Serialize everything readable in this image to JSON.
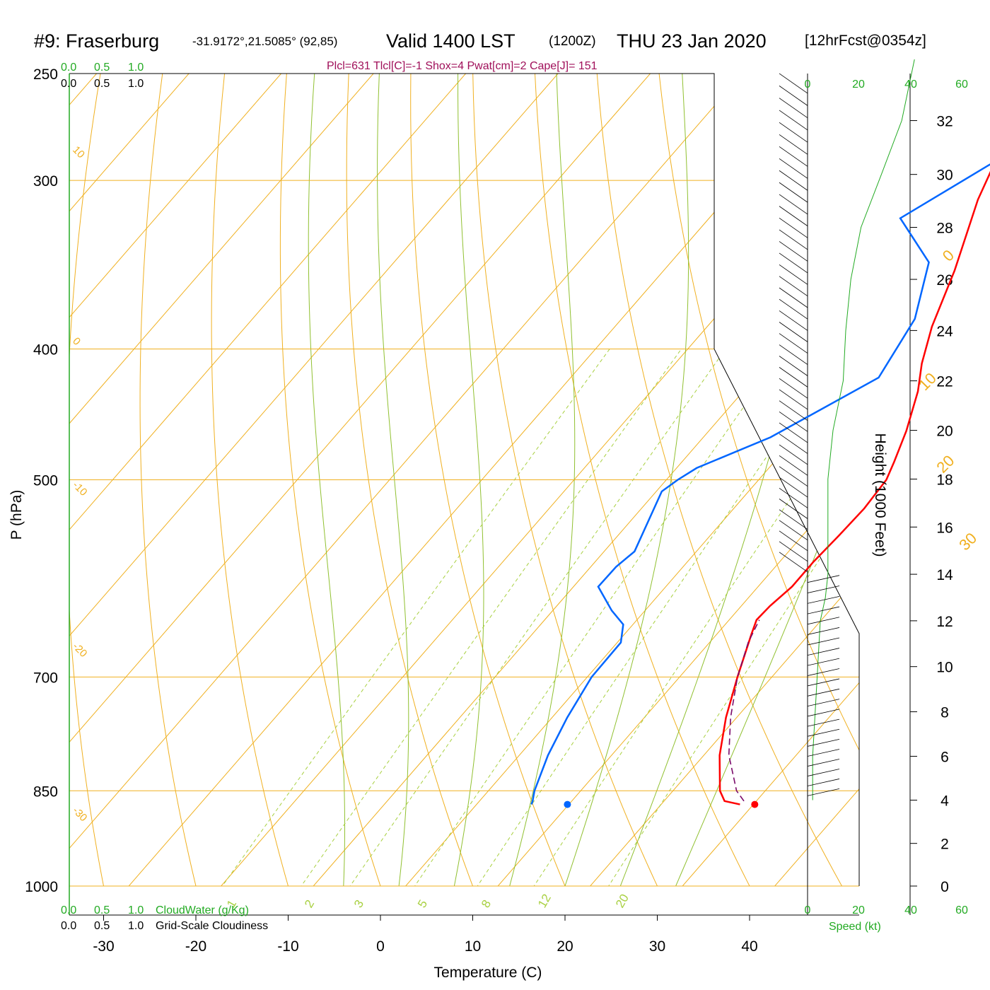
{
  "header": {
    "station": "#9: Fraserburg",
    "coords": "-31.9172°,21.5085° (92,85)",
    "valid": "Valid 1400 LST",
    "zulu": "(1200Z)",
    "date": "THU 23 Jan 2020",
    "forecast": "[12hrFcst@0354z]",
    "indices": "Plcl=631 Tlcl[C]=-1 Shox=4 Pwat[cm]=2 Cape[J]= 151"
  },
  "scales": {
    "cloudwater_ticks": [
      "0.0",
      "0.5",
      "1.0"
    ],
    "cloudwater_label": "CloudWater (g/Kg)",
    "cloudiness_ticks": [
      "0.0",
      "0.5",
      "1.0"
    ],
    "cloudiness_label": "Grid-Scale Cloudiness",
    "speed_ticks": [
      "0",
      "20",
      "40",
      "60"
    ],
    "speed_label": "Speed (kt)"
  },
  "colors": {
    "temperature": "#ff0000",
    "dewpoint": "#0066ff",
    "parcel": "#7a0a6a",
    "isotherm": "#f0b020",
    "dry_adiabat": "#f0b020",
    "moist_adiabat": "#90c030",
    "mixing_ratio": "#a8d040",
    "speed_profile": "#22aa22"
  },
  "chart_data": {
    "type": "line",
    "subtype": "skew-T log-P sounding",
    "xlabel": "Temperature (C)",
    "ylabel": "P (hPa)",
    "y2label": "Height (1000 Feet)",
    "x_ticks": [
      -30,
      -20,
      -10,
      0,
      10,
      20,
      30,
      40
    ],
    "p_ticks": [
      250,
      300,
      400,
      500,
      700,
      850,
      1000
    ],
    "height_ticks": [
      0,
      2,
      4,
      6,
      8,
      10,
      12,
      14,
      16,
      18,
      20,
      22,
      24,
      26,
      28,
      30,
      32
    ],
    "skewed_isotherms": [
      0,
      10,
      20,
      30
    ],
    "left_isotherms": [
      10,
      0,
      -10,
      -20,
      -30
    ],
    "mixing_ratio_labels": [
      "1",
      "2",
      "3",
      "5",
      "8",
      "12",
      "20"
    ],
    "series": [
      {
        "name": "Temperature",
        "points": [
          [
            870,
            31.0
          ],
          [
            865,
            29.0
          ],
          [
            850,
            27.5
          ],
          [
            800,
            24.0
          ],
          [
            750,
            21.0
          ],
          [
            700,
            18.3
          ],
          [
            650,
            15.6
          ],
          [
            635,
            14.8
          ],
          [
            620,
            14.9
          ],
          [
            600,
            15.4
          ],
          [
            575,
            15.3
          ],
          [
            550,
            15.5
          ],
          [
            525,
            15.6
          ],
          [
            500,
            15.2
          ],
          [
            485,
            14.3
          ],
          [
            460,
            12.6
          ],
          [
            430,
            10.0
          ],
          [
            410,
            7.7
          ],
          [
            385,
            5.2
          ],
          [
            350,
            2.2
          ],
          [
            310,
            -2.2
          ],
          [
            270,
            -6.1
          ],
          [
            250,
            -7.4
          ]
        ]
      },
      {
        "name": "Dewpoint",
        "points": [
          [
            870,
            8.4
          ],
          [
            865,
            8.2
          ],
          [
            850,
            7.4
          ],
          [
            800,
            5.4
          ],
          [
            750,
            3.8
          ],
          [
            700,
            2.5
          ],
          [
            660,
            2.3
          ],
          [
            640,
            0.8
          ],
          [
            625,
            -1.8
          ],
          [
            600,
            -5.6
          ],
          [
            580,
            -5.6
          ],
          [
            565,
            -5.1
          ],
          [
            510,
            -8.0
          ],
          [
            500,
            -7.4
          ],
          [
            490,
            -6.5
          ],
          [
            465,
            -1.5
          ],
          [
            420,
            4.4
          ],
          [
            380,
            2.6
          ],
          [
            345,
            -1.4
          ],
          [
            320,
            -8.8
          ],
          [
            290,
            -4.0
          ],
          [
            265,
            -4.0
          ],
          [
            250,
            -4.9
          ]
        ]
      },
      {
        "name": "Parcel",
        "points": [
          [
            865,
            31.1
          ],
          [
            850,
            29.3
          ],
          [
            800,
            25.0
          ],
          [
            750,
            21.5
          ],
          [
            700,
            18.3
          ],
          [
            660,
            16.1
          ],
          [
            635,
            15.1
          ]
        ]
      }
    ],
    "surface_points": {
      "temperature": 32.6,
      "dewpoint": 12.3,
      "pressure": 870
    },
    "wind_speed_profile_kt": [
      [
        4,
        2
      ],
      [
        6,
        2
      ],
      [
        8,
        3
      ],
      [
        10,
        4
      ],
      [
        12,
        5
      ],
      [
        13,
        7
      ],
      [
        14,
        8
      ],
      [
        16,
        8
      ],
      [
        18,
        8
      ],
      [
        20,
        10
      ],
      [
        22,
        14
      ],
      [
        24,
        15
      ],
      [
        26,
        17
      ],
      [
        28,
        21
      ],
      [
        30,
        29
      ],
      [
        32,
        37
      ],
      [
        33,
        42
      ]
    ]
  }
}
